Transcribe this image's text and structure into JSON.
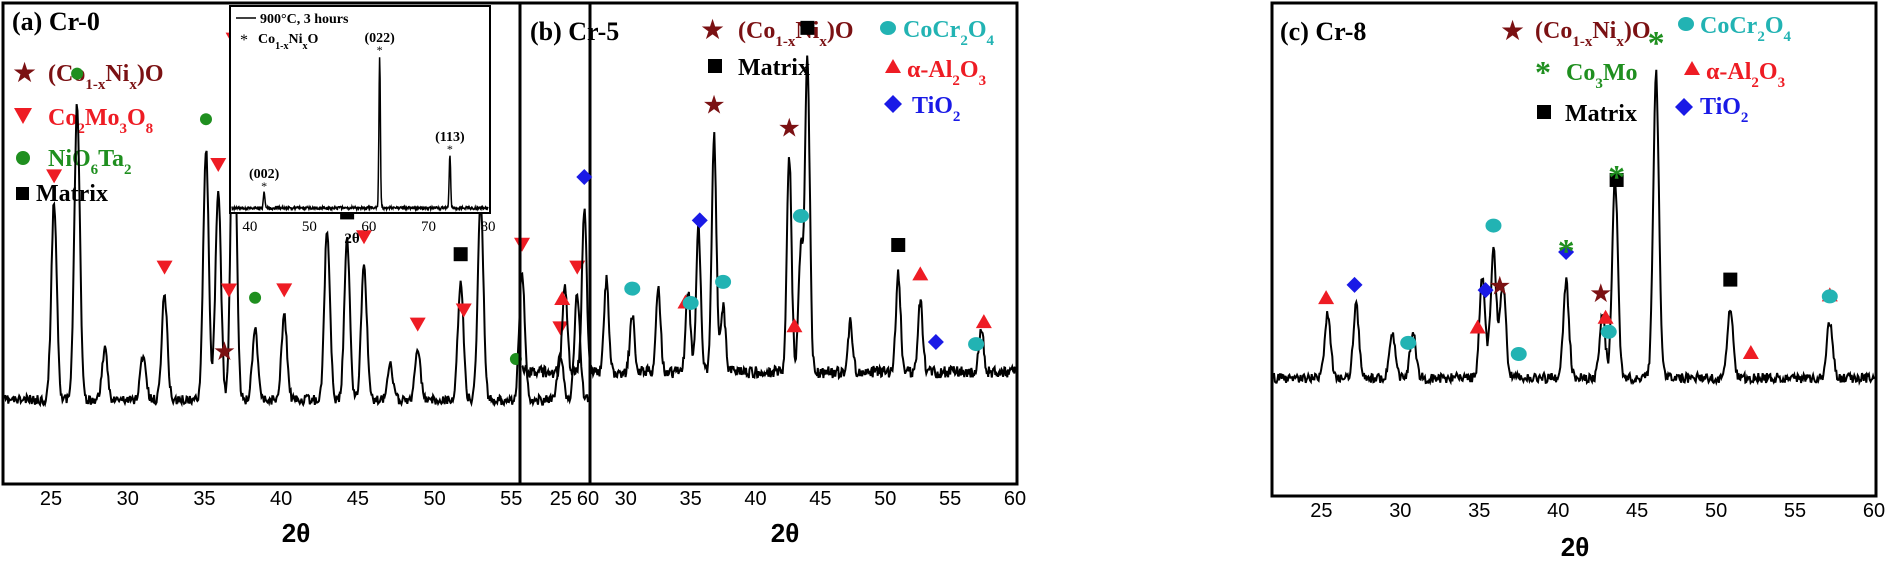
{
  "colors": {
    "star": "#7b1113",
    "triangle": "#ee1c24",
    "circle_green": "#1f8f1f",
    "circle_teal": "#22b3b3",
    "diamond": "#1a1ae6",
    "square": "#000000",
    "green_text": "#1f8f1f",
    "teal_text": "#22b3b3",
    "blue_text": "#1a1ae6",
    "red_text": "#ee1c24",
    "maroon_text": "#7b1113"
  },
  "icons": [
    "star-marker",
    "triangle-marker",
    "circle-marker",
    "square-marker",
    "diamond-marker",
    "asterisk-marker"
  ],
  "chart_data": [
    {
      "type": "line",
      "panel_label": "(a) Cr-0",
      "xlabel": "2θ",
      "xlim": [
        22,
        60
      ],
      "xticks": [
        25,
        30,
        35,
        40,
        45,
        50,
        55,
        60
      ],
      "legend": [
        {
          "marker": "star",
          "text": "(Co1-xNix)O"
        },
        {
          "marker": "triangle",
          "text": "Co2Mo3O8"
        },
        {
          "marker": "circle-green",
          "text": "NiO6Ta2"
        },
        {
          "marker": "square",
          "text": "Matrix"
        }
      ],
      "peaks": [
        {
          "x": 25.2,
          "h": 0.52
        },
        {
          "x": 26.7,
          "h": 0.78
        },
        {
          "x": 28.5,
          "h": 0.13
        },
        {
          "x": 31.0,
          "h": 0.12
        },
        {
          "x": 32.4,
          "h": 0.28
        },
        {
          "x": 35.1,
          "h": 0.66
        },
        {
          "x": 35.9,
          "h": 0.55
        },
        {
          "x": 36.9,
          "h": 0.88
        },
        {
          "x": 38.3,
          "h": 0.19
        },
        {
          "x": 40.2,
          "h": 0.22
        },
        {
          "x": 43.0,
          "h": 0.45
        },
        {
          "x": 44.3,
          "h": 0.42
        },
        {
          "x": 45.4,
          "h": 0.36
        },
        {
          "x": 47.1,
          "h": 0.1
        },
        {
          "x": 48.9,
          "h": 0.13
        },
        {
          "x": 51.7,
          "h": 0.31
        },
        {
          "x": 53.0,
          "h": 0.53
        },
        {
          "x": 55.7,
          "h": 0.34
        },
        {
          "x": 58.2,
          "h": 0.12
        },
        {
          "x": 59.3,
          "h": 0.28
        }
      ],
      "markers": [
        {
          "x": 25.2,
          "type": "triangle"
        },
        {
          "x": 26.7,
          "type": "circle-green"
        },
        {
          "x": 32.4,
          "type": "triangle"
        },
        {
          "x": 35.1,
          "type": "circle-green"
        },
        {
          "x": 35.9,
          "type": "triangle"
        },
        {
          "x": 36.3,
          "type": "star"
        },
        {
          "x": 36.6,
          "type": "triangle"
        },
        {
          "x": 36.9,
          "type": "triangle"
        },
        {
          "x": 38.3,
          "type": "circle-green"
        },
        {
          "x": 40.2,
          "type": "triangle"
        },
        {
          "x": 43.0,
          "type": "star"
        },
        {
          "x": 44.3,
          "type": "square"
        },
        {
          "x": 45.4,
          "type": "triangle"
        },
        {
          "x": 48.9,
          "type": "triangle"
        },
        {
          "x": 51.7,
          "type": "square"
        },
        {
          "x": 51.9,
          "type": "triangle"
        },
        {
          "x": 53.0,
          "type": "circle-green"
        },
        {
          "x": 55.3,
          "type": "circle-green"
        },
        {
          "x": 55.7,
          "type": "triangle"
        },
        {
          "x": 58.2,
          "type": "triangle"
        },
        {
          "x": 59.3,
          "type": "triangle"
        }
      ],
      "inset": {
        "legend_line": "900°C, 3 hours",
        "legend_star": "Co1-xNixO",
        "xlabel": "2θ",
        "xlim": [
          37,
          80
        ],
        "xticks": [
          40,
          50,
          60,
          70,
          80
        ],
        "peaks": [
          {
            "x": 42.4,
            "h": 0.1,
            "label": "(002)"
          },
          {
            "x": 61.8,
            "h": 0.95,
            "label": "(022)"
          },
          {
            "x": 73.6,
            "h": 0.33,
            "label": "(113)"
          }
        ]
      }
    },
    {
      "type": "line",
      "panel_label": "(b) Cr-5",
      "xlabel": "2θ",
      "xlim": [
        22,
        60
      ],
      "xticks": [
        25,
        30,
        35,
        40,
        45,
        50,
        55,
        60
      ],
      "legend": [
        {
          "marker": "star",
          "text": "(Co1-xNix)O"
        },
        {
          "marker": "circle-teal",
          "text": "CoCr2O4"
        },
        {
          "marker": "square",
          "text": "Matrix"
        },
        {
          "marker": "triangle",
          "text": "α-Al2O3"
        },
        {
          "marker": "diamond",
          "text": "TiO2"
        }
      ],
      "peaks": [
        {
          "x": 25.3,
          "h": 0.27
        },
        {
          "x": 26.8,
          "h": 0.5
        },
        {
          "x": 28.5,
          "h": 0.28
        },
        {
          "x": 30.5,
          "h": 0.18
        },
        {
          "x": 32.5,
          "h": 0.26
        },
        {
          "x": 34.8,
          "h": 0.25
        },
        {
          "x": 35.6,
          "h": 0.43
        },
        {
          "x": 36.8,
          "h": 0.72
        },
        {
          "x": 37.5,
          "h": 0.2
        },
        {
          "x": 42.6,
          "h": 0.65
        },
        {
          "x": 43.5,
          "h": 0.38
        },
        {
          "x": 44.0,
          "h": 0.95
        },
        {
          "x": 47.3,
          "h": 0.15
        },
        {
          "x": 51.0,
          "h": 0.3
        },
        {
          "x": 52.7,
          "h": 0.22
        },
        {
          "x": 57.4,
          "h": 0.14
        }
      ],
      "markers": [
        {
          "x": 25.1,
          "type": "triangle"
        },
        {
          "x": 26.8,
          "type": "diamond"
        },
        {
          "x": 30.5,
          "type": "circle-teal"
        },
        {
          "x": 34.6,
          "type": "triangle"
        },
        {
          "x": 35.0,
          "type": "circle-teal"
        },
        {
          "x": 35.7,
          "type": "diamond"
        },
        {
          "x": 36.8,
          "type": "star"
        },
        {
          "x": 37.5,
          "type": "circle-teal"
        },
        {
          "x": 42.6,
          "type": "star"
        },
        {
          "x": 43.0,
          "type": "triangle"
        },
        {
          "x": 43.5,
          "type": "circle-teal"
        },
        {
          "x": 44.0,
          "type": "square"
        },
        {
          "x": 51.0,
          "type": "square"
        },
        {
          "x": 52.7,
          "type": "triangle"
        },
        {
          "x": 53.9,
          "type": "diamond"
        },
        {
          "x": 57.0,
          "type": "circle-teal"
        },
        {
          "x": 57.6,
          "type": "triangle"
        }
      ]
    },
    {
      "type": "line",
      "panel_label": "(c) Cr-8",
      "xlabel": "2θ",
      "xlim": [
        22,
        60
      ],
      "xticks": [
        25,
        30,
        35,
        40,
        45,
        50,
        55,
        60
      ],
      "legend": [
        {
          "marker": "star",
          "text": "(Co1-xNix)O"
        },
        {
          "marker": "circle-teal",
          "text": "CoCr2O4"
        },
        {
          "marker": "asterisk",
          "text": "Co3Mo"
        },
        {
          "marker": "triangle",
          "text": "α-Al2O3"
        },
        {
          "marker": "square",
          "text": "Matrix"
        },
        {
          "marker": "diamond",
          "text": "TiO2"
        }
      ],
      "peaks": [
        {
          "x": 25.4,
          "h": 0.2
        },
        {
          "x": 27.2,
          "h": 0.23
        },
        {
          "x": 29.5,
          "h": 0.14
        },
        {
          "x": 30.8,
          "h": 0.14
        },
        {
          "x": 35.2,
          "h": 0.32
        },
        {
          "x": 35.9,
          "h": 0.4
        },
        {
          "x": 36.5,
          "h": 0.3
        },
        {
          "x": 40.5,
          "h": 0.3
        },
        {
          "x": 42.8,
          "h": 0.2
        },
        {
          "x": 43.6,
          "h": 0.62
        },
        {
          "x": 46.2,
          "h": 0.95
        },
        {
          "x": 50.9,
          "h": 0.22
        },
        {
          "x": 57.2,
          "h": 0.18
        }
      ],
      "markers": [
        {
          "x": 25.3,
          "type": "triangle"
        },
        {
          "x": 27.1,
          "type": "diamond"
        },
        {
          "x": 30.5,
          "type": "circle-teal"
        },
        {
          "x": 34.9,
          "type": "triangle"
        },
        {
          "x": 35.4,
          "type": "diamond"
        },
        {
          "x": 35.9,
          "type": "circle-teal"
        },
        {
          "x": 36.3,
          "type": "star"
        },
        {
          "x": 37.5,
          "type": "circle-teal"
        },
        {
          "x": 40.5,
          "type": "diamond"
        },
        {
          "x": 40.5,
          "type": "asterisk"
        },
        {
          "x": 42.7,
          "type": "star"
        },
        {
          "x": 43.0,
          "type": "triangle"
        },
        {
          "x": 43.2,
          "type": "circle-teal"
        },
        {
          "x": 43.7,
          "type": "square"
        },
        {
          "x": 43.7,
          "type": "asterisk"
        },
        {
          "x": 46.2,
          "type": "asterisk"
        },
        {
          "x": 50.9,
          "type": "square"
        },
        {
          "x": 52.2,
          "type": "triangle"
        },
        {
          "x": 57.2,
          "type": "triangle"
        },
        {
          "x": 57.2,
          "type": "circle-teal"
        }
      ]
    }
  ]
}
